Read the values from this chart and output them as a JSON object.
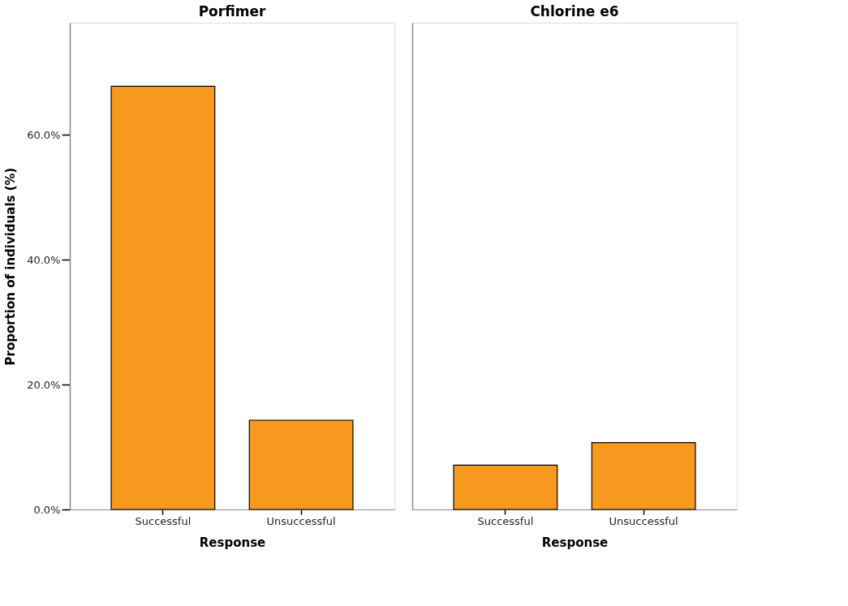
{
  "chart_data": [
    {
      "type": "bar",
      "title": "Porfimer",
      "xlabel": "Response",
      "ylabel": "Proportion of individuals (%)",
      "categories": [
        "Successful",
        "Unsuccessful"
      ],
      "values": [
        67.8,
        14.3
      ],
      "color": "#f7991f",
      "ylim": [
        0,
        78
      ],
      "yticks": [
        {
          "value": 0,
          "label": "0.0%"
        },
        {
          "value": 20,
          "label": "20.0%"
        },
        {
          "value": 40,
          "label": "40.0%"
        },
        {
          "value": 60,
          "label": "60.0%"
        }
      ],
      "grid": false
    },
    {
      "type": "bar",
      "title": "Chlorine e6",
      "xlabel": "Response",
      "categories": [
        "Successful",
        "Unsuccessful"
      ],
      "values": [
        7.1,
        10.7
      ],
      "color": "#f7991f",
      "ylim": [
        0,
        78
      ],
      "grid": false,
      "tick_labels": "x"
    }
  ]
}
